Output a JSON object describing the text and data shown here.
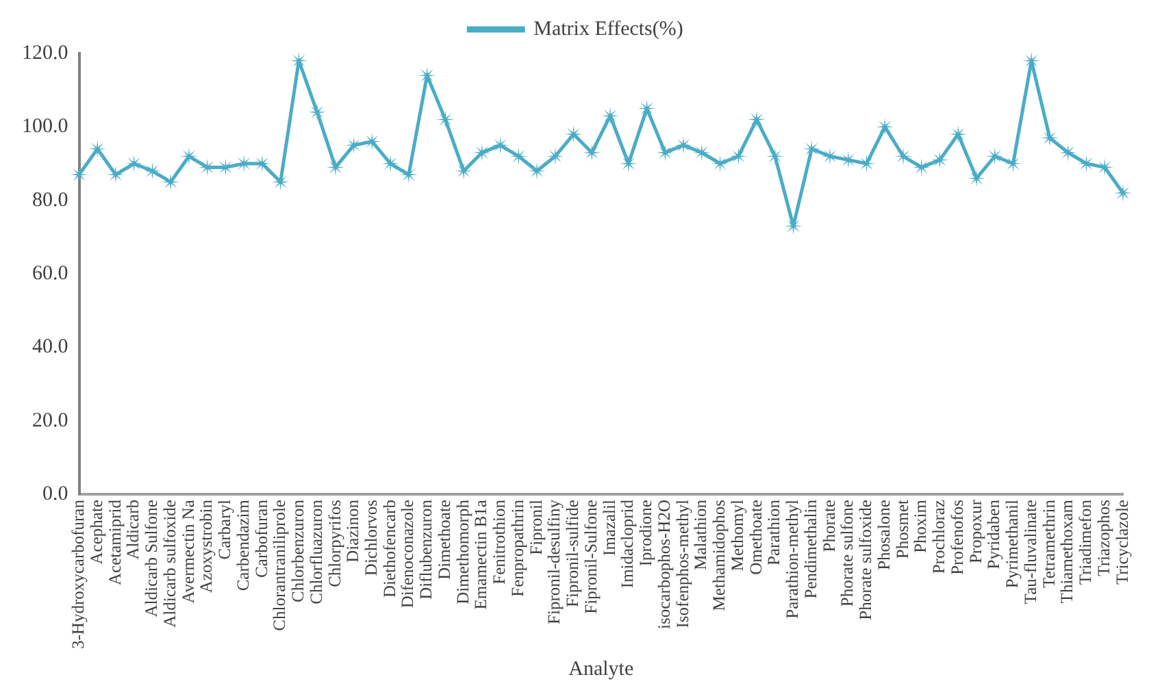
{
  "chart_data": {
    "type": "line",
    "xlabel": "Analyte",
    "legend": "top",
    "marker": "star",
    "grid": false,
    "categories": [
      "3-Hydroxycarbofuran",
      "Acephate",
      "Acetamiprid",
      "Aldicarb",
      "Aldicarb Sulfone",
      "Aldicarb sulfoxide",
      "Avermectin Na",
      "Azoxystrobin",
      "Carbaryl",
      "Carbendazim",
      "Carbofuran",
      "Chlorantraniliprole",
      "Chlorbenzuron",
      "Chlorfluazuron",
      "Chlorpyrifos",
      "Diazinon",
      "Dichlorvos",
      "Diethofencarb",
      "Difenoconazole",
      "Diflubenzuron",
      "Dimethoate",
      "Dimethomorph",
      "Emamectin B1a",
      "Fenitrothion",
      "Fenpropathrin",
      "Fipronil",
      "Fipronil-desulfiny",
      "Fipronil-sulfide",
      "Fipronil-Sulfone",
      "Imazalil",
      "Imidacloprid",
      "Iprodione",
      "isocarbophos-H2O",
      "Isofenphos-methyl",
      "Malathion",
      "Methamidophos",
      "Methomyl",
      "Omethoate",
      "Parathion",
      "Parathion-methyl",
      "Pendimethalin",
      "Phorate",
      "Phorate sulfone",
      "Phorate sulfoxide",
      "Phosalone",
      "Phosmet",
      "Phoxim",
      "Prochloraz",
      "Profenofos",
      "Propoxur",
      "Pyridaben",
      "Pyrimethanil",
      "Tau-fluvalinate",
      "Tetramethrin",
      "Thiamethoxam",
      "Triadimefon",
      "Triazophos",
      "Tricyclazole"
    ],
    "series": [
      {
        "name": "Matrix Effects(%)",
        "color": "#4bacc6",
        "values": [
          87,
          94,
          87,
          90,
          88,
          85,
          92,
          89,
          89,
          90,
          90,
          85,
          118,
          104,
          89,
          95,
          96,
          90,
          87,
          114,
          102,
          88,
          93,
          95,
          92,
          88,
          92,
          98,
          93,
          103,
          90,
          105,
          93,
          95,
          93,
          90,
          92,
          102,
          92,
          73,
          94,
          92,
          91,
          90,
          100,
          92,
          89,
          91,
          98,
          86,
          92,
          90,
          118,
          97,
          93,
          90,
          89,
          82
        ]
      }
    ],
    "ylim": [
      0,
      120
    ],
    "yticks": [
      {
        "value": 0,
        "label": "0.0"
      },
      {
        "value": 20,
        "label": "20.0"
      },
      {
        "value": 40,
        "label": "40.0"
      },
      {
        "value": 60,
        "label": "60.0"
      },
      {
        "value": 80,
        "label": "80.0"
      },
      {
        "value": 100,
        "label": "100.0"
      },
      {
        "value": 120,
        "label": "120.0"
      }
    ]
  }
}
